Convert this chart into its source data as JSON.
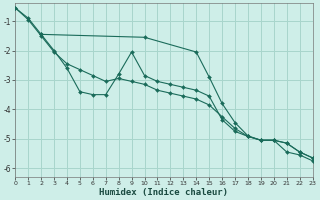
{
  "background_color": "#ceeee8",
  "grid_color": "#a8d5cc",
  "line_color": "#1a6b5a",
  "marker_color": "#1a6b5a",
  "xlabel": "Humidex (Indice chaleur)",
  "xlim": [
    0,
    23
  ],
  "ylim": [
    -6.3,
    -0.4
  ],
  "yticks": [
    -6,
    -5,
    -4,
    -3,
    -2,
    -1
  ],
  "xticks": [
    0,
    1,
    2,
    3,
    4,
    5,
    6,
    7,
    8,
    9,
    10,
    11,
    12,
    13,
    14,
    15,
    16,
    17,
    18,
    19,
    20,
    21,
    22,
    23
  ],
  "line1_x": [
    0,
    1,
    2,
    10,
    14,
    15,
    16,
    17,
    18,
    19,
    20,
    21,
    22,
    23
  ],
  "line1_y": [
    -0.55,
    -0.9,
    -1.45,
    -1.55,
    -2.05,
    -2.9,
    -3.8,
    -4.45,
    -4.9,
    -5.05,
    -5.05,
    -5.45,
    -5.55,
    -5.75
  ],
  "line2_x": [
    2,
    3,
    4,
    5,
    6,
    7,
    8,
    9,
    10,
    11,
    12,
    13,
    14,
    15,
    16,
    17,
    18,
    19,
    20,
    21,
    22,
    23
  ],
  "line2_y": [
    -1.45,
    -2.0,
    -2.6,
    -3.4,
    -3.5,
    -3.5,
    -2.8,
    -2.05,
    -2.85,
    -3.05,
    -3.15,
    -3.25,
    -3.35,
    -3.55,
    -4.35,
    -4.75,
    -4.92,
    -5.05,
    -5.05,
    -5.15,
    -5.45,
    -5.65
  ],
  "line3_x": [
    0,
    1,
    2,
    3,
    4,
    5,
    6,
    7,
    8,
    9,
    10,
    11,
    12,
    13,
    14,
    15,
    16,
    17,
    18,
    19,
    20,
    21,
    22,
    23
  ],
  "line3_y": [
    -0.55,
    -0.95,
    -1.5,
    -2.05,
    -2.45,
    -2.65,
    -2.85,
    -3.05,
    -2.95,
    -3.05,
    -3.15,
    -3.35,
    -3.45,
    -3.55,
    -3.65,
    -3.85,
    -4.25,
    -4.65,
    -4.92,
    -5.05,
    -5.05,
    -5.15,
    -5.45,
    -5.65
  ]
}
